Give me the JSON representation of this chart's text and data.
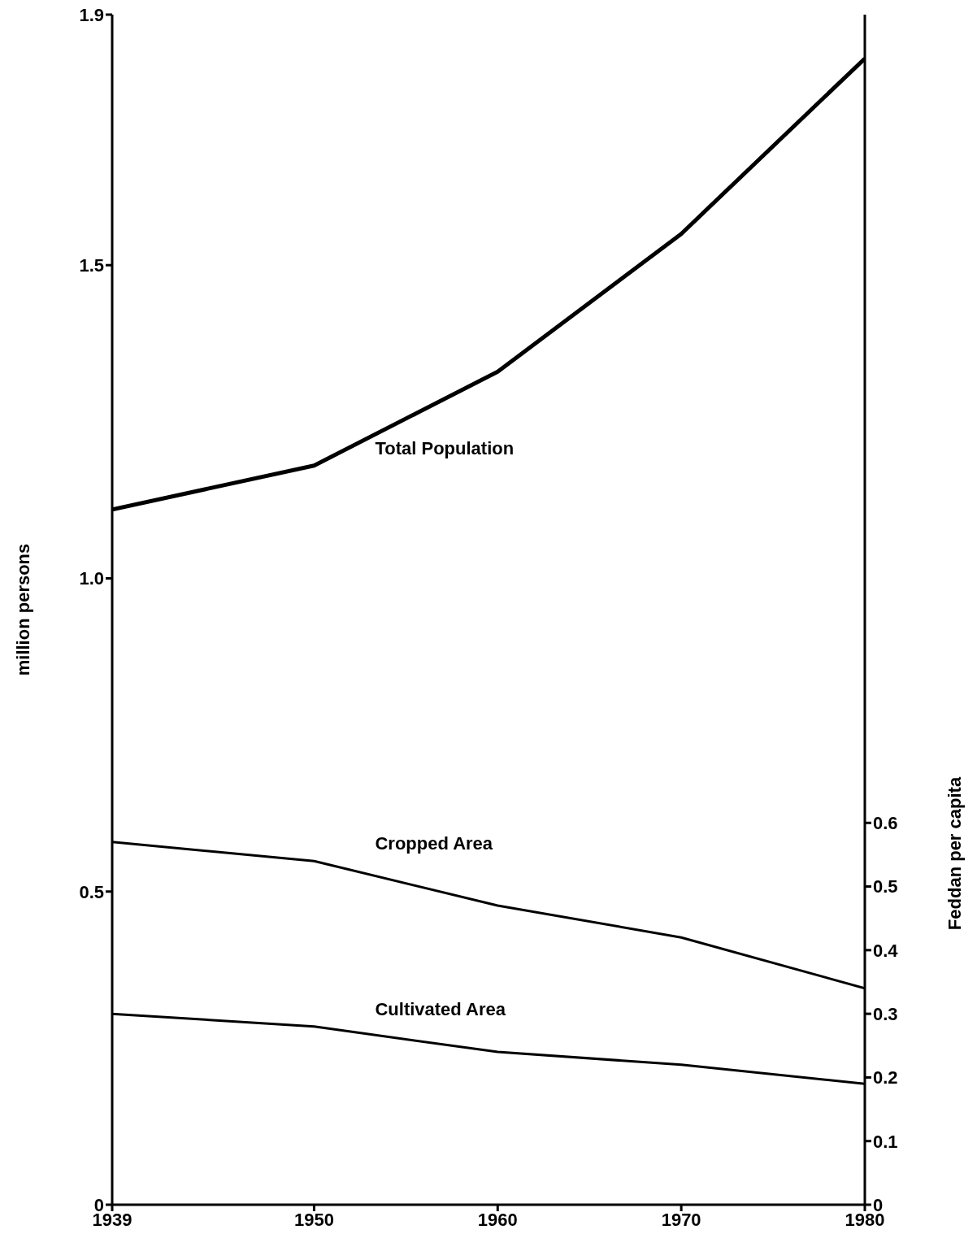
{
  "chart_data": {
    "type": "line",
    "ylabel": "million persons",
    "y2label": "Feddan per capita",
    "x": [
      1939,
      1950,
      1960,
      1970,
      1980
    ],
    "xlim": [
      1939,
      1980
    ],
    "xticks": [
      1939,
      1950,
      1960,
      1970,
      1980
    ],
    "ylim": [
      0,
      1.9
    ],
    "yticks": [
      0,
      0.5,
      {
        "value": 1.0,
        "label": "1.0"
      },
      1.5,
      1.9
    ],
    "y2lim": [
      0,
      1.87
    ],
    "y2ticks": [
      0,
      0.1,
      0.2,
      0.3,
      0.4,
      0.5,
      0.6
    ],
    "marker": "none",
    "line_style": "solid",
    "series": [
      {
        "name": "Total Population",
        "color": "#000000",
        "values": [
          1.11,
          1.18,
          1.33,
          1.55,
          1.83
        ]
      },
      {
        "name": "Cropped Area",
        "color": "#000000",
        "axis": "y2",
        "values": [
          0.57,
          0.54,
          0.47,
          0.42,
          0.34
        ]
      },
      {
        "name": "Cultivated Area",
        "color": "#000000",
        "axis": "y2",
        "values": [
          0.3,
          0.28,
          0.24,
          0.22,
          0.19
        ]
      }
    ]
  }
}
